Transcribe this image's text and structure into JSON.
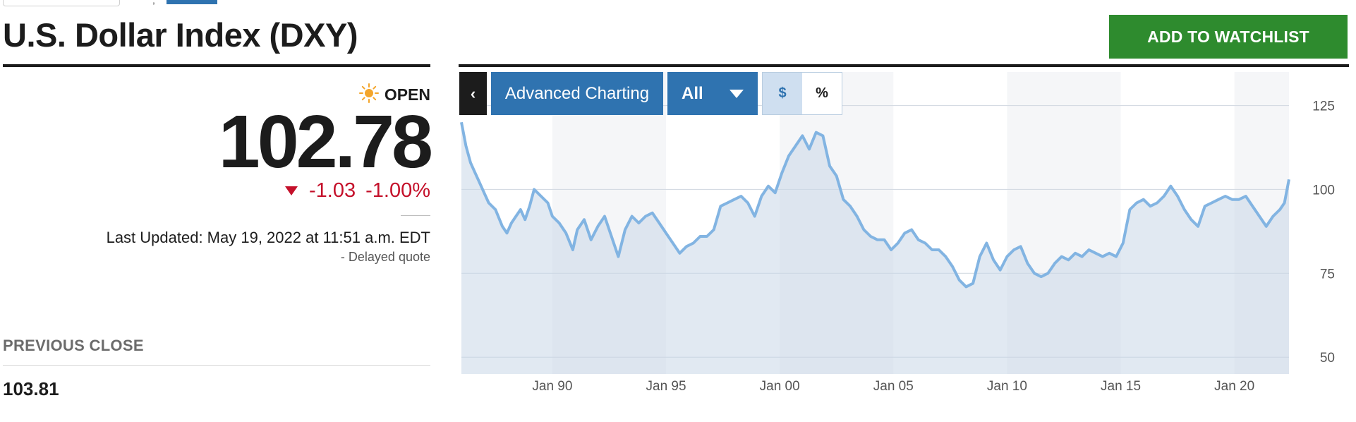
{
  "page": {
    "title": "U.S. Dollar Index (DXY)"
  },
  "header": {
    "watchlist_button": "ADD TO WATCHLIST"
  },
  "quote": {
    "status": "OPEN",
    "status_icon": "sun-icon",
    "price": "102.78",
    "change": "-1.03",
    "change_percent": "-1.00%",
    "change_color": "#c4102a",
    "last_updated": "Last Updated: May 19, 2022 at 11:51 a.m. EDT",
    "delayed": "-  Delayed quote"
  },
  "previous_close": {
    "label": "PREVIOUS CLOSE",
    "value": "103.81"
  },
  "chart_toolbar": {
    "back_icon": "chevron-left-icon",
    "advanced_label": "Advanced Charting",
    "range_label": "All",
    "dollar_label": "$",
    "percent_label": "%"
  },
  "colors": {
    "accent": "#2f73b0",
    "watchlist": "#2e8b2e",
    "line": "#82b4e2",
    "down": "#c4102a"
  },
  "chart_data": {
    "type": "area",
    "title": "",
    "xlabel": "",
    "ylabel": "",
    "ylim": [
      45,
      135
    ],
    "xlim": [
      1986.0,
      2022.4
    ],
    "y_ticks": [
      50,
      75,
      100,
      125
    ],
    "x_ticks": [
      {
        "label": "Jan 90",
        "value": 1990
      },
      {
        "label": "Jan 95",
        "value": 1995
      },
      {
        "label": "Jan 00",
        "value": 2000
      },
      {
        "label": "Jan 05",
        "value": 2005
      },
      {
        "label": "Jan 10",
        "value": 2010
      },
      {
        "label": "Jan 15",
        "value": 2015
      },
      {
        "label": "Jan 20",
        "value": 2020
      }
    ],
    "grid": true,
    "legend": "none",
    "series": [
      {
        "x": [
          1986.0,
          1986.2,
          1986.4,
          1986.6,
          1986.8,
          1987.0,
          1987.2,
          1987.5,
          1987.8,
          1988.0,
          1988.2,
          1988.4,
          1988.6,
          1988.8,
          1989.0,
          1989.2,
          1989.5,
          1989.8,
          1990.0,
          1990.3,
          1990.6,
          1990.9,
          1991.1,
          1991.4,
          1991.7,
          1992.0,
          1992.3,
          1992.6,
          1992.9,
          1993.2,
          1993.5,
          1993.8,
          1994.1,
          1994.4,
          1994.7,
          1995.0,
          1995.3,
          1995.6,
          1995.9,
          1996.2,
          1996.5,
          1996.8,
          1997.1,
          1997.4,
          1997.7,
          1998.0,
          1998.3,
          1998.6,
          1998.9,
          1999.2,
          1999.5,
          1999.8,
          2000.1,
          2000.4,
          2000.7,
          2001.0,
          2001.3,
          2001.6,
          2001.9,
          2002.2,
          2002.5,
          2002.8,
          2003.1,
          2003.4,
          2003.7,
          2004.0,
          2004.3,
          2004.6,
          2004.9,
          2005.2,
          2005.5,
          2005.8,
          2006.1,
          2006.4,
          2006.7,
          2007.0,
          2007.3,
          2007.6,
          2007.9,
          2008.2,
          2008.5,
          2008.8,
          2009.1,
          2009.4,
          2009.7,
          2010.0,
          2010.3,
          2010.6,
          2010.9,
          2011.2,
          2011.5,
          2011.8,
          2012.1,
          2012.4,
          2012.7,
          2013.0,
          2013.3,
          2013.6,
          2013.9,
          2014.2,
          2014.5,
          2014.8,
          2015.1,
          2015.4,
          2015.7,
          2016.0,
          2016.3,
          2016.6,
          2016.9,
          2017.2,
          2017.5,
          2017.8,
          2018.1,
          2018.4,
          2018.7,
          2019.0,
          2019.3,
          2019.6,
          2019.9,
          2020.2,
          2020.5,
          2020.8,
          2021.1,
          2021.4,
          2021.7,
          2022.0,
          2022.2,
          2022.4
        ],
        "values": [
          120,
          113,
          108,
          105,
          102,
          99,
          96,
          94,
          89,
          87,
          90,
          92,
          94,
          91,
          95,
          100,
          98,
          96,
          92,
          90,
          87,
          82,
          88,
          91,
          85,
          89,
          92,
          86,
          80,
          88,
          92,
          90,
          92,
          93,
          90,
          87,
          84,
          81,
          83,
          84,
          86,
          86,
          88,
          95,
          96,
          97,
          98,
          96,
          92,
          98,
          101,
          99,
          105,
          110,
          113,
          116,
          112,
          117,
          116,
          107,
          104,
          97,
          95,
          92,
          88,
          86,
          85,
          85,
          82,
          84,
          87,
          88,
          85,
          84,
          82,
          82,
          80,
          77,
          73,
          71,
          72,
          80,
          84,
          79,
          76,
          80,
          82,
          83,
          78,
          75,
          74,
          75,
          78,
          80,
          79,
          81,
          80,
          82,
          81,
          80,
          81,
          80,
          84,
          94,
          96,
          97,
          95,
          96,
          98,
          101,
          98,
          94,
          91,
          89,
          95,
          96,
          97,
          98,
          97,
          97,
          98,
          95,
          92,
          89,
          92,
          94,
          96,
          103
        ]
      }
    ]
  }
}
